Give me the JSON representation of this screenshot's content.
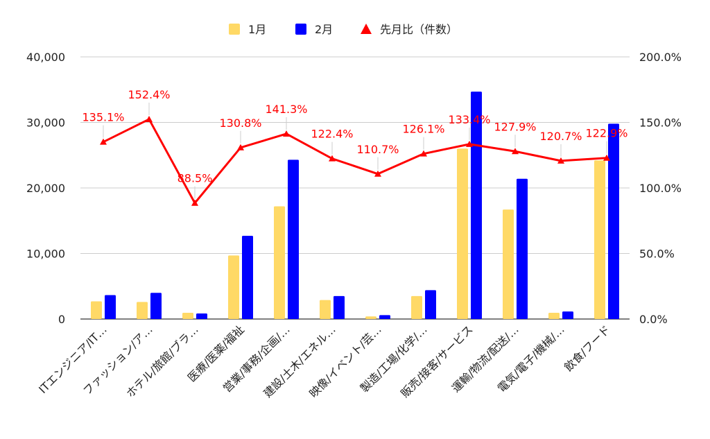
{
  "chart_data": {
    "type": "bar",
    "categories": [
      "ITエンジニア/IT…",
      "ファッション/ア…",
      "ホテル/旅館/ブラ…",
      "医療/医薬/福祉",
      "営業/事務/企画/…",
      "建設/土木/エネル…",
      "映像/イベント/芸…",
      "製造/工場/化学/…",
      "販売/接客/サービス",
      "運輸/物流/配送/…",
      "電気/電子/機械/…",
      "飲食/フード"
    ],
    "series": [
      {
        "name": "1月",
        "type": "bar",
        "axis": "left",
        "color": "#ffd966",
        "values": [
          2700,
          2600,
          950,
          9700,
          17200,
          2900,
          400,
          3500,
          26000,
          16700,
          950,
          24200
        ]
      },
      {
        "name": "2月",
        "type": "bar",
        "axis": "left",
        "color": "#0000ff",
        "values": [
          3650,
          4000,
          850,
          12700,
          24300,
          3500,
          600,
          4400,
          34700,
          21400,
          1150,
          29800
        ]
      },
      {
        "name": "先月比（件数）",
        "type": "line",
        "axis": "right",
        "color": "#ff0000",
        "marker": "triangle",
        "values": [
          135.1,
          152.4,
          88.5,
          130.8,
          141.3,
          122.4,
          110.7,
          126.1,
          133.4,
          127.9,
          120.7,
          122.9
        ],
        "labels": [
          "135.1%",
          "152.4%",
          "88.5%",
          "130.8%",
          "141.3%",
          "122.4%",
          "110.7%",
          "126.1%",
          "133.4%",
          "127.9%",
          "120.7%",
          "122.9%"
        ]
      }
    ],
    "y_left": {
      "ylim": [
        0,
        40000
      ],
      "ticks": [
        0,
        10000,
        20000,
        30000,
        40000
      ],
      "tick_labels": [
        "0",
        "10,000",
        "20,000",
        "30,000",
        "40,000"
      ]
    },
    "y_right": {
      "ylim": [
        0,
        200
      ],
      "ticks": [
        0,
        50,
        100,
        150,
        200
      ],
      "tick_labels": [
        "0.0%",
        "50.0%",
        "100.0%",
        "150.0%",
        "200.0%"
      ]
    },
    "grid": true,
    "legend": "top-center",
    "title": "",
    "xlabel": "",
    "ylabel": ""
  }
}
